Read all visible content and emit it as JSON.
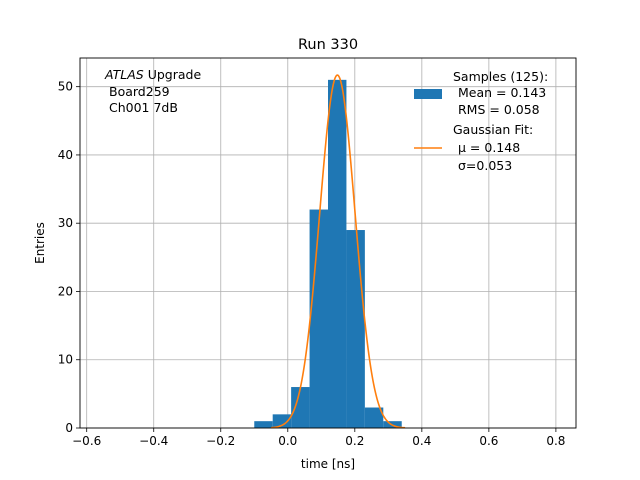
{
  "chart_data": {
    "type": "bar",
    "title": "Run 330",
    "xlabel": "time [ns]",
    "ylabel": "Entries",
    "xlim": [
      -0.62,
      0.86
    ],
    "ylim": [
      0,
      54.2
    ],
    "grid": true,
    "x_ticks": [
      -0.6,
      -0.4,
      -0.2,
      0.0,
      0.2,
      0.4,
      0.6,
      0.8
    ],
    "x_tick_labels": [
      "−0.6",
      "−0.4",
      "−0.2",
      "0.0",
      "0.2",
      "0.4",
      "0.6",
      "0.8"
    ],
    "y_ticks": [
      0,
      10,
      20,
      30,
      40,
      50
    ],
    "y_tick_labels": [
      "0",
      "10",
      "20",
      "30",
      "40",
      "50"
    ],
    "histogram": {
      "bin_edges": [
        -0.1,
        -0.045,
        0.01,
        0.065,
        0.12,
        0.175,
        0.23,
        0.285,
        0.34
      ],
      "counts": [
        1,
        2,
        6,
        32,
        51,
        29,
        3,
        1
      ],
      "color": "#1f77b4"
    },
    "fit": {
      "type": "gaussian",
      "mu": 0.148,
      "sigma": 0.053,
      "amplitude": 51.7,
      "x_range": [
        -0.05,
        0.35
      ],
      "color": "#ff7f0e"
    },
    "annotation": {
      "line1_italic": "ATLAS",
      "line1_rest": " Upgrade",
      "line2": "Board259",
      "line3": "Ch001 7dB"
    },
    "legend": {
      "position": "top-right",
      "entries": [
        {
          "kind": "patch",
          "color": "#1f77b4",
          "lines": [
            "Samples (125):",
            "Mean = 0.143",
            "RMS = 0.058"
          ]
        },
        {
          "kind": "line",
          "color": "#ff7f0e",
          "lines": [
            "Gaussian Fit:",
            "μ = 0.148",
            "σ=0.053"
          ]
        }
      ]
    }
  }
}
